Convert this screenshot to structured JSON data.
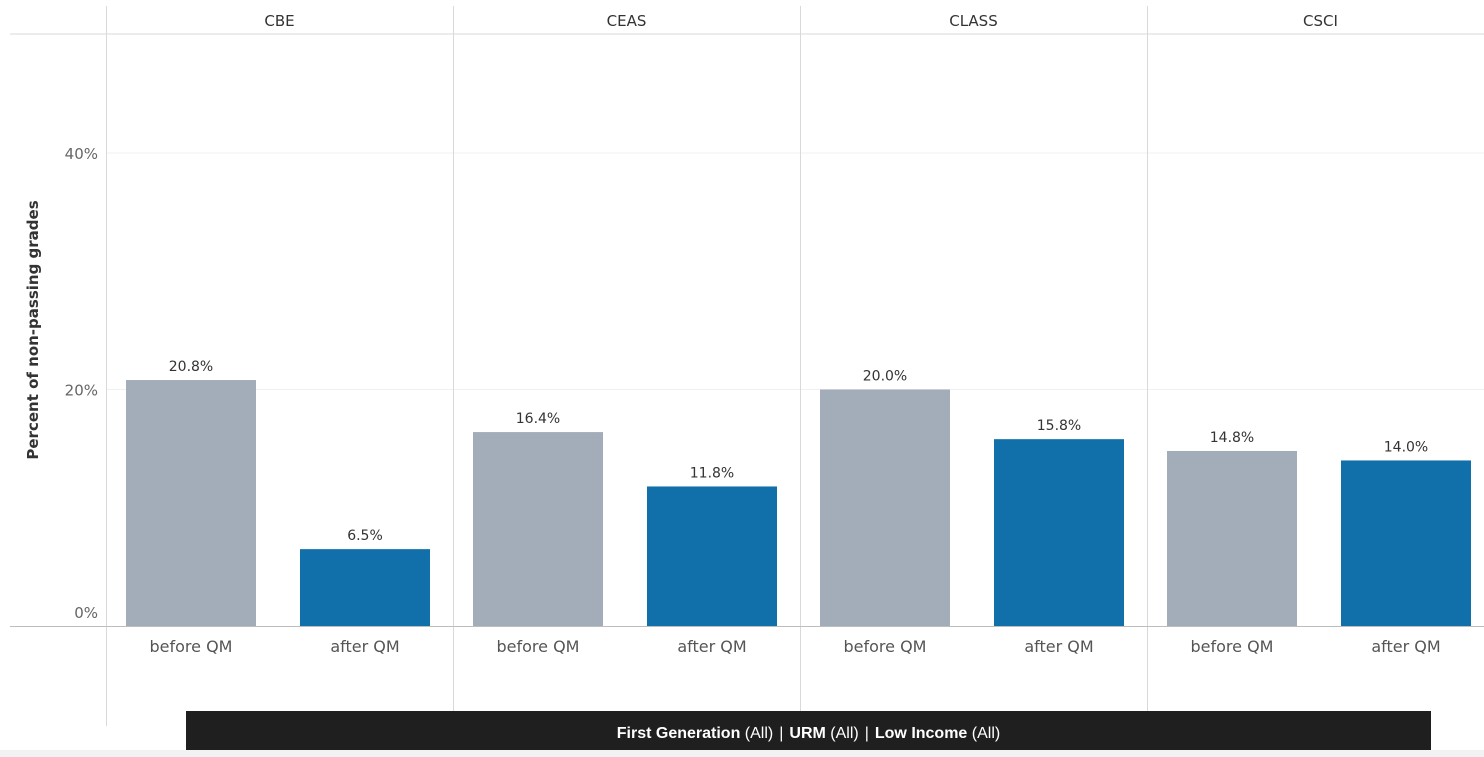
{
  "chart_data": {
    "type": "bar",
    "ylabel": "Percent of non-passing grades",
    "ylim": [
      0,
      50
    ],
    "yticks": [
      {
        "value": 0,
        "label": "0%"
      },
      {
        "value": 20,
        "label": "20%"
      },
      {
        "value": 40,
        "label": "40%"
      }
    ],
    "grid": true,
    "colors": {
      "before QM": "#a3acb9",
      "after QM": "#1170aa"
    },
    "panels": [
      {
        "name": "CBE",
        "categories": [
          "before QM",
          "after QM"
        ],
        "values": [
          20.8,
          6.5
        ],
        "labels": [
          "20.8%",
          "6.5%"
        ]
      },
      {
        "name": "CEAS",
        "categories": [
          "before QM",
          "after QM"
        ],
        "values": [
          16.4,
          11.8
        ],
        "labels": [
          "16.4%",
          "11.8%"
        ]
      },
      {
        "name": "CLASS",
        "categories": [
          "before QM",
          "after QM"
        ],
        "values": [
          20.0,
          15.8
        ],
        "labels": [
          "20.0%",
          "15.8%"
        ]
      },
      {
        "name": "CSCI",
        "categories": [
          "before QM",
          "after QM"
        ],
        "values": [
          14.8,
          14.0
        ],
        "labels": [
          "14.8%",
          "14.0%"
        ]
      }
    ]
  },
  "filters": [
    {
      "name": "First Generation",
      "value": "(All)"
    },
    {
      "name": "URM",
      "value": "(All)"
    },
    {
      "name": "Low Income",
      "value": "(All)"
    }
  ],
  "filter_separator": "|"
}
